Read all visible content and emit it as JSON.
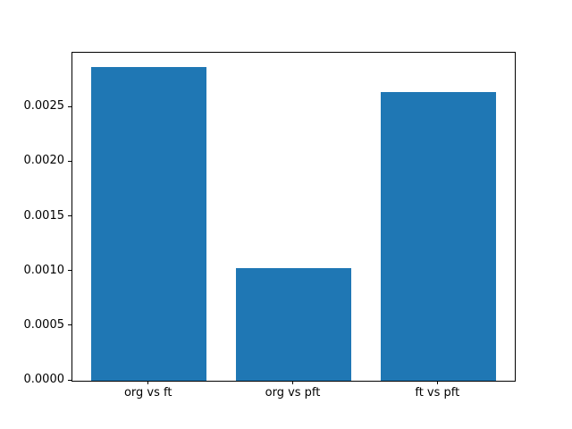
{
  "figure": {
    "background": "#ffffff"
  },
  "chart_data": {
    "type": "bar",
    "title": "",
    "categories": [
      "org vs ft",
      "org vs pft",
      "ft vs pft"
    ],
    "values": [
      0.00287,
      0.00103,
      0.00264
    ],
    "bar_color": "#1f77b4",
    "xlabel": "",
    "ylabel": "",
    "ylim": [
      0,
      0.003
    ],
    "xlim": [
      -0.53,
      2.53
    ],
    "bar_width": 0.8,
    "yticks": [
      0.0,
      0.0005,
      0.001,
      0.0015,
      0.002,
      0.0025
    ],
    "ytick_labels": [
      "0.0000",
      "0.0005",
      "0.0010",
      "0.0015",
      "0.0020",
      "0.0025"
    ],
    "grid": false,
    "legend": false,
    "text_color": "#000000",
    "spine_color": "#000000"
  }
}
